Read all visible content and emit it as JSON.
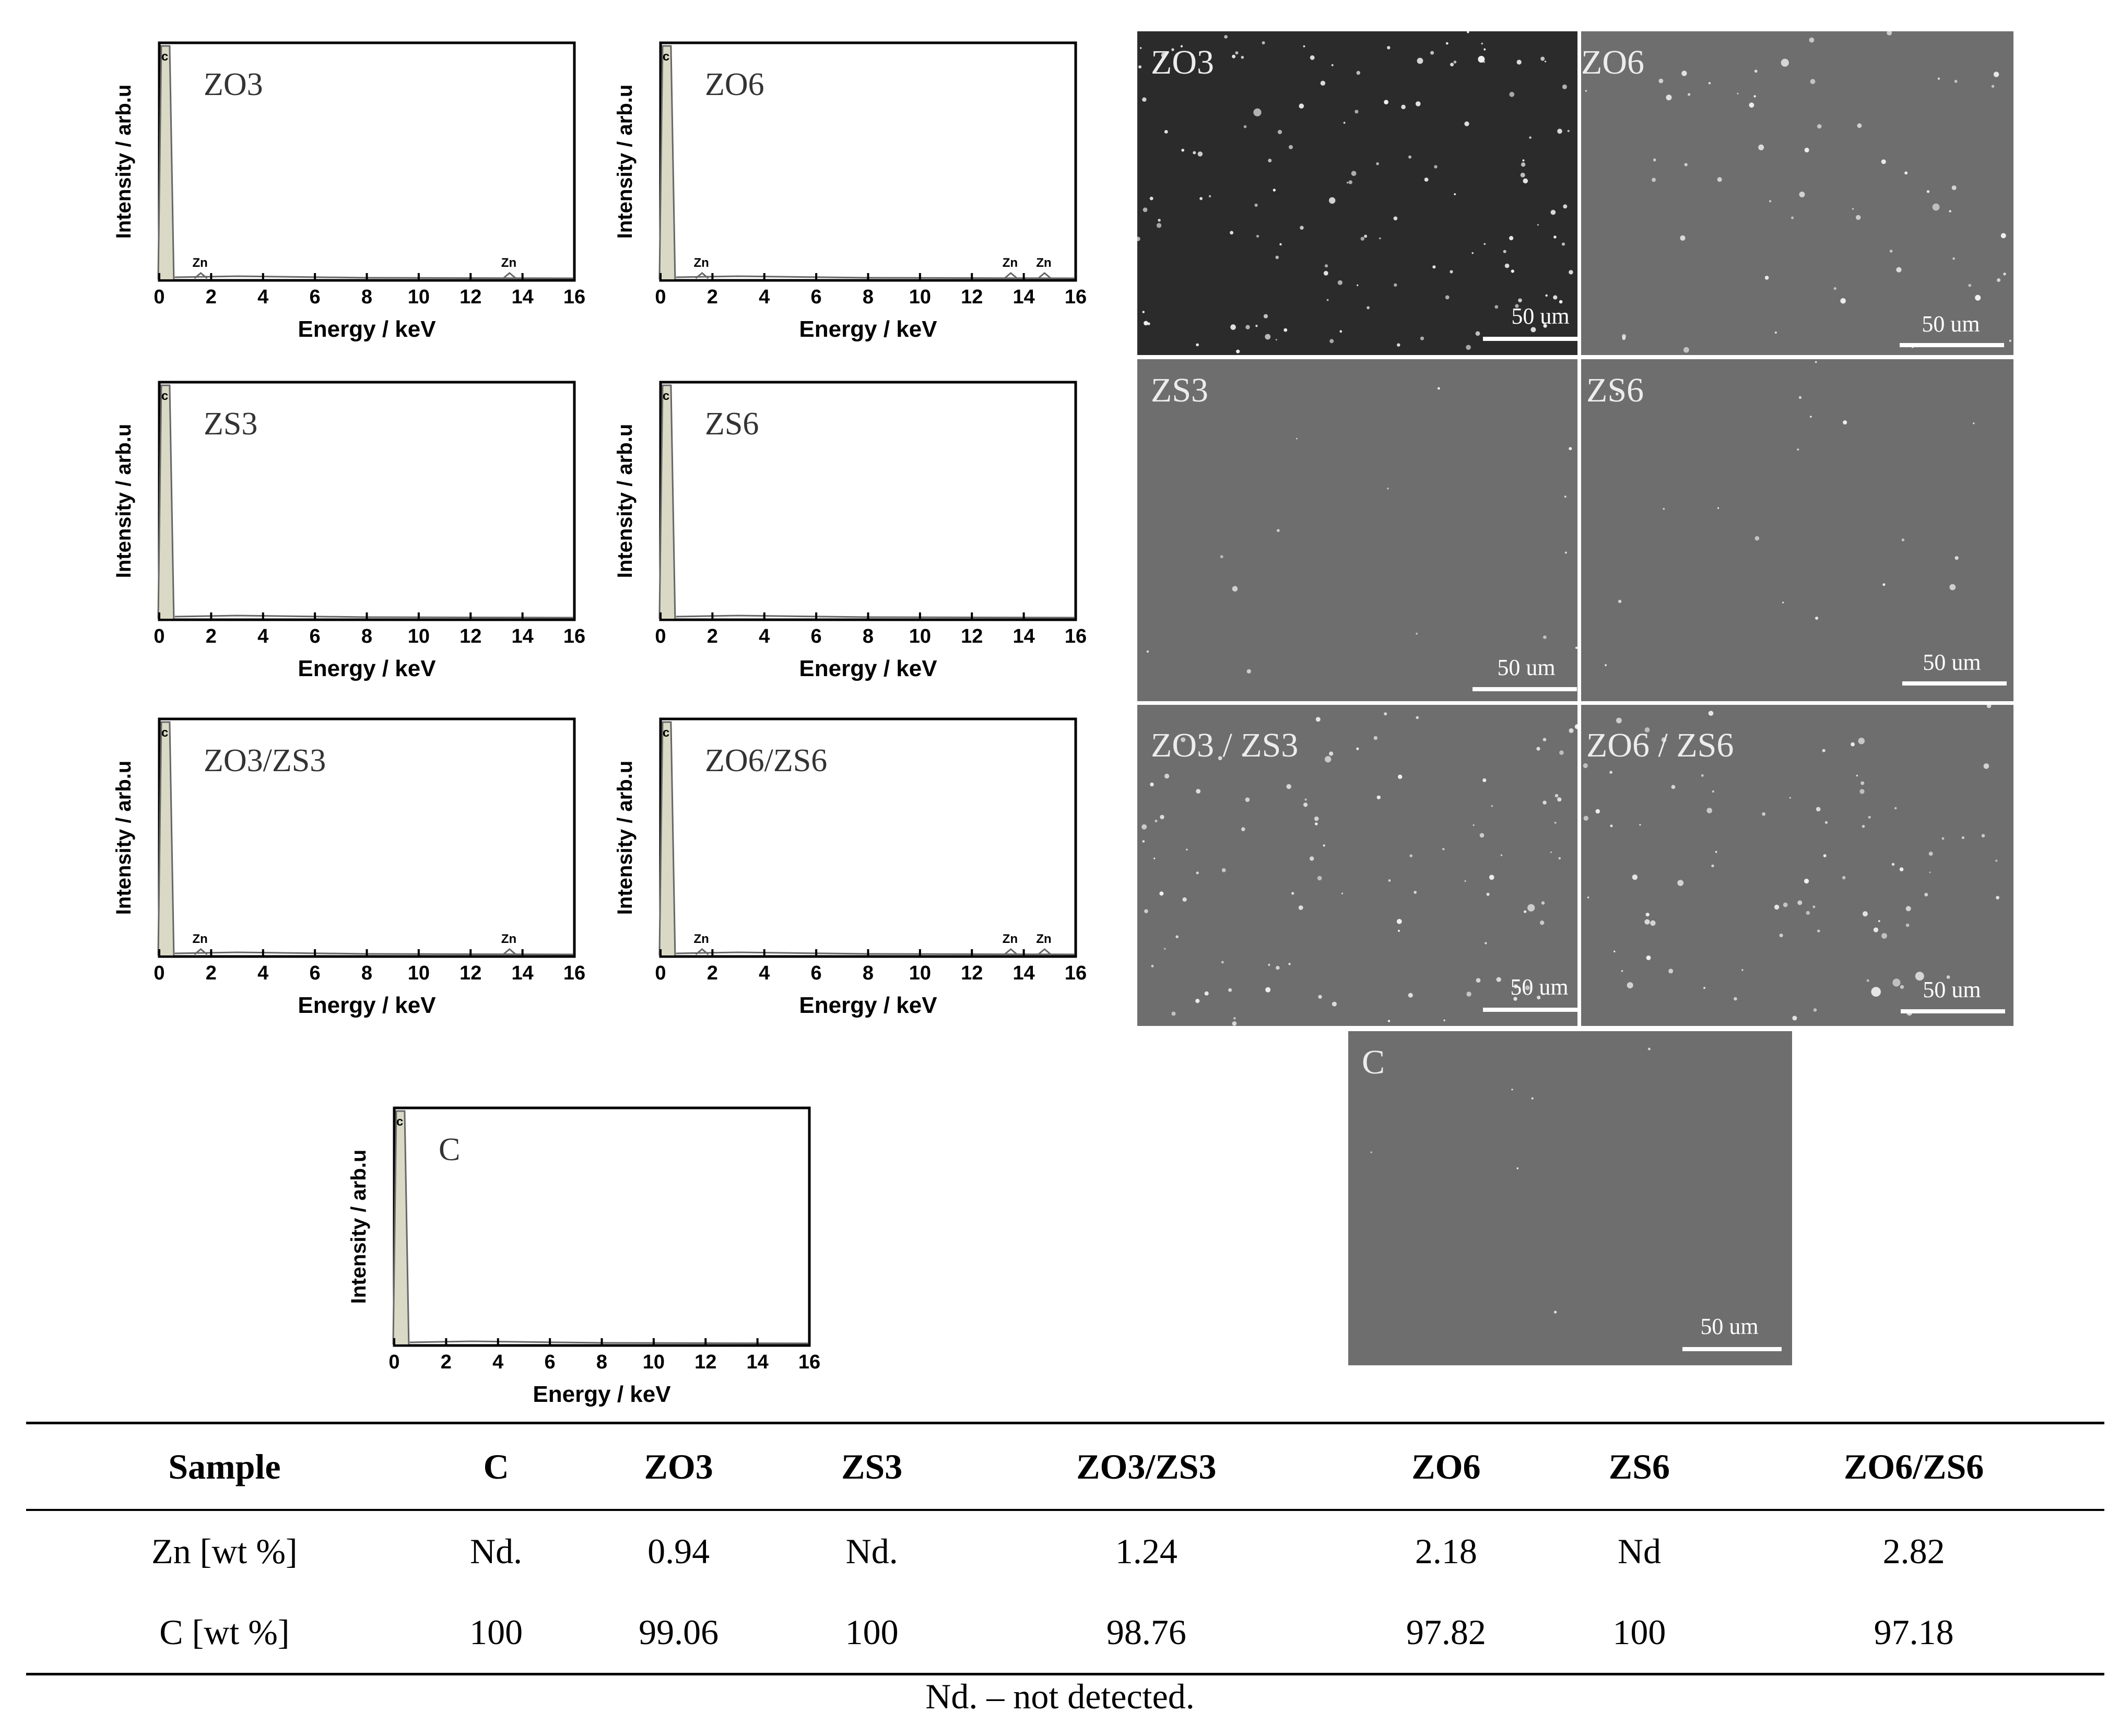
{
  "chart_data": [
    {
      "type": "line",
      "sample": "ZO3",
      "title": "ZO3",
      "xlabel": "Energy / keV",
      "ylabel": "Intensity / arb.u",
      "xlim": [
        0,
        16
      ],
      "x_ticks": [
        "0",
        "2",
        "4",
        "6",
        "8",
        "10",
        "12",
        "14",
        "16"
      ],
      "peaks": [
        {
          "label": "C",
          "energy": 0.28
        },
        {
          "label": "Zn",
          "energy": 1.6
        },
        {
          "label": "Zn",
          "energy": 13.5
        }
      ]
    },
    {
      "type": "line",
      "sample": "ZO6",
      "title": "ZO6",
      "xlabel": "Energy / keV",
      "ylabel": "Intensity / arb.u",
      "xlim": [
        0,
        16
      ],
      "x_ticks": [
        "0",
        "2",
        "4",
        "6",
        "8",
        "10",
        "12",
        "14",
        "16"
      ],
      "peaks": [
        {
          "label": "C",
          "energy": 0.28
        },
        {
          "label": "Zn",
          "energy": 1.6
        },
        {
          "label": "Zn",
          "energy": 13.5
        },
        {
          "label": "Zn",
          "energy": 14.8
        }
      ]
    },
    {
      "type": "line",
      "sample": "ZS3",
      "title": "ZS3",
      "xlabel": "Energy / keV",
      "ylabel": "Intensity / arb.u",
      "xlim": [
        0,
        16
      ],
      "x_ticks": [
        "0",
        "2",
        "4",
        "6",
        "8",
        "10",
        "12",
        "14",
        "16"
      ],
      "peaks": [
        {
          "label": "C",
          "energy": 0.28
        }
      ]
    },
    {
      "type": "line",
      "sample": "ZS6",
      "title": "ZS6",
      "xlabel": "Energy / keV",
      "ylabel": "Intensity / arb.u",
      "xlim": [
        0,
        16
      ],
      "x_ticks": [
        "0",
        "2",
        "4",
        "6",
        "8",
        "10",
        "12",
        "14",
        "16"
      ],
      "peaks": [
        {
          "label": "C",
          "energy": 0.28
        }
      ]
    },
    {
      "type": "line",
      "sample": "ZO3/ZS3",
      "title": "ZO3/ZS3",
      "xlabel": "Energy / keV",
      "ylabel": "Intensity / arb.u",
      "xlim": [
        0,
        16
      ],
      "x_ticks": [
        "0",
        "2",
        "4",
        "6",
        "8",
        "10",
        "12",
        "14",
        "16"
      ],
      "peaks": [
        {
          "label": "C",
          "energy": 0.28
        },
        {
          "label": "Zn",
          "energy": 1.6
        },
        {
          "label": "Zn",
          "energy": 13.5
        }
      ]
    },
    {
      "type": "line",
      "sample": "ZO6/ZS6",
      "title": "ZO6/ZS6",
      "xlabel": "Energy / keV",
      "ylabel": "Intensity / arb.u",
      "xlim": [
        0,
        16
      ],
      "x_ticks": [
        "0",
        "2",
        "4",
        "6",
        "8",
        "10",
        "12",
        "14",
        "16"
      ],
      "peaks": [
        {
          "label": "C",
          "energy": 0.28
        },
        {
          "label": "Zn",
          "energy": 1.6
        },
        {
          "label": "Zn",
          "energy": 13.5
        },
        {
          "label": "Zn",
          "energy": 14.8
        }
      ]
    },
    {
      "type": "line",
      "sample": "C",
      "title": "C",
      "xlabel": "Energy / keV",
      "ylabel": "Intensity / arb.u",
      "xlim": [
        0,
        16
      ],
      "x_ticks": [
        "0",
        "2",
        "4",
        "6",
        "8",
        "10",
        "12",
        "14",
        "16"
      ],
      "peaks": [
        {
          "label": "C",
          "energy": 0.28
        }
      ]
    }
  ],
  "sem_images": [
    {
      "label": "ZO3",
      "scale": "50 um",
      "tone": "dark"
    },
    {
      "label": "ZO6",
      "scale": "50 um",
      "tone": "gray"
    },
    {
      "label": "ZS3",
      "scale": "50 um",
      "tone": "gray"
    },
    {
      "label": "ZS6",
      "scale": "50 um",
      "tone": "gray"
    },
    {
      "label": "ZO3 / ZS3",
      "scale": "50 um",
      "tone": "gray"
    },
    {
      "label": "ZO6 / ZS6",
      "scale": "50 um",
      "tone": "gray"
    },
    {
      "label": "C",
      "scale": "50 um",
      "tone": "gray"
    }
  ],
  "table": {
    "headers": [
      "Sample",
      "C",
      "ZO3",
      "ZS3",
      "ZO3/ZS3",
      "ZO6",
      "ZS6",
      "ZO6/ZS6"
    ],
    "rows": [
      [
        "Zn [wt %]",
        "Nd.",
        "0.94",
        "Nd.",
        "1.24",
        "2.18",
        "Nd",
        "2.82"
      ],
      [
        "C [wt %]",
        "100",
        "99.06",
        "100",
        "98.76",
        "97.82",
        "100",
        "97.18"
      ]
    ]
  },
  "footnote": "Nd. – not detected.",
  "colors": {
    "sem_dark": "#2b2b2b",
    "sem_gray": "#6e6e6e",
    "axis": "#000000",
    "spectrum": "#666666"
  }
}
